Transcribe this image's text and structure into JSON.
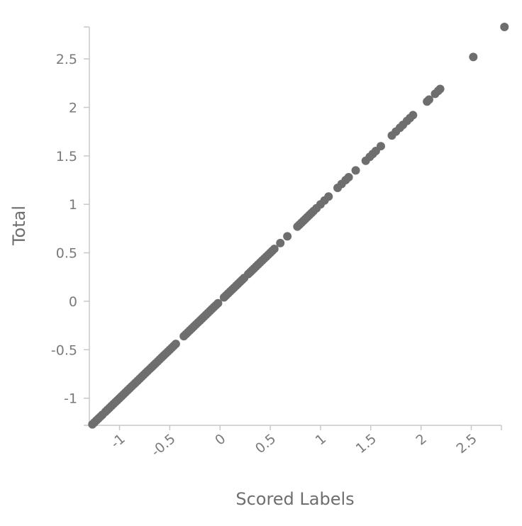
{
  "chart_data": {
    "type": "scatter",
    "title": "",
    "xlabel": "Scored Labels",
    "ylabel": "Total",
    "xlim": [
      -1.3,
      2.8
    ],
    "ylim": [
      -1.28,
      2.83
    ],
    "x_ticks": [
      -1,
      -0.5,
      0,
      0.5,
      1,
      1.5,
      2,
      2.5
    ],
    "x_tick_labels": [
      "-1",
      "-0.5",
      "0",
      "0.5",
      "1",
      "1.5",
      "2",
      "2.5"
    ],
    "y_ticks": [
      -1,
      -0.5,
      0,
      0.5,
      1,
      1.5,
      2,
      2.5
    ],
    "y_tick_labels": [
      "-1",
      "-0.5",
      "0",
      "0.5",
      "1",
      "1.5",
      "2",
      "2.5"
    ],
    "grid": false,
    "legend": "none",
    "colors": {
      "points": "#6e6e6e",
      "axis": "#c8c8c8"
    },
    "points": [
      [
        -1.27,
        -1.27
      ],
      [
        -1.25,
        -1.25
      ],
      [
        -1.23,
        -1.23
      ],
      [
        -1.21,
        -1.21
      ],
      [
        -1.19,
        -1.19
      ],
      [
        -1.17,
        -1.17
      ],
      [
        -1.14,
        -1.14
      ],
      [
        -1.12,
        -1.12
      ],
      [
        -1.1,
        -1.1
      ],
      [
        -1.08,
        -1.08
      ],
      [
        -1.06,
        -1.06
      ],
      [
        -1.04,
        -1.04
      ],
      [
        -1.02,
        -1.02
      ],
      [
        -1.0,
        -1.0
      ],
      [
        -0.98,
        -0.98
      ],
      [
        -0.96,
        -0.96
      ],
      [
        -0.94,
        -0.94
      ],
      [
        -0.92,
        -0.92
      ],
      [
        -0.9,
        -0.9
      ],
      [
        -0.88,
        -0.88
      ],
      [
        -0.86,
        -0.86
      ],
      [
        -0.84,
        -0.84
      ],
      [
        -0.82,
        -0.82
      ],
      [
        -0.8,
        -0.8
      ],
      [
        -0.78,
        -0.78
      ],
      [
        -0.76,
        -0.76
      ],
      [
        -0.74,
        -0.74
      ],
      [
        -0.72,
        -0.72
      ],
      [
        -0.7,
        -0.7
      ],
      [
        -0.68,
        -0.68
      ],
      [
        -0.66,
        -0.66
      ],
      [
        -0.64,
        -0.64
      ],
      [
        -0.62,
        -0.62
      ],
      [
        -0.6,
        -0.6
      ],
      [
        -0.58,
        -0.58
      ],
      [
        -0.56,
        -0.56
      ],
      [
        -0.54,
        -0.54
      ],
      [
        -0.52,
        -0.52
      ],
      [
        -0.5,
        -0.5
      ],
      [
        -0.48,
        -0.48
      ],
      [
        -0.46,
        -0.46
      ],
      [
        -0.44,
        -0.44
      ],
      [
        -0.36,
        -0.36
      ],
      [
        -0.34,
        -0.34
      ],
      [
        -0.32,
        -0.32
      ],
      [
        -0.3,
        -0.3
      ],
      [
        -0.28,
        -0.28
      ],
      [
        -0.26,
        -0.26
      ],
      [
        -0.24,
        -0.24
      ],
      [
        -0.22,
        -0.22
      ],
      [
        -0.2,
        -0.2
      ],
      [
        -0.18,
        -0.18
      ],
      [
        -0.16,
        -0.16
      ],
      [
        -0.14,
        -0.14
      ],
      [
        -0.12,
        -0.12
      ],
      [
        -0.1,
        -0.1
      ],
      [
        -0.08,
        -0.08
      ],
      [
        -0.06,
        -0.06
      ],
      [
        -0.04,
        -0.04
      ],
      [
        -0.02,
        -0.02
      ],
      [
        0.04,
        0.04
      ],
      [
        0.06,
        0.06
      ],
      [
        0.08,
        0.08
      ],
      [
        0.1,
        0.1
      ],
      [
        0.12,
        0.12
      ],
      [
        0.14,
        0.14
      ],
      [
        0.16,
        0.16
      ],
      [
        0.18,
        0.18
      ],
      [
        0.2,
        0.2
      ],
      [
        0.22,
        0.22
      ],
      [
        0.24,
        0.24
      ],
      [
        0.28,
        0.28
      ],
      [
        0.3,
        0.3
      ],
      [
        0.32,
        0.32
      ],
      [
        0.34,
        0.34
      ],
      [
        0.36,
        0.36
      ],
      [
        0.38,
        0.38
      ],
      [
        0.4,
        0.4
      ],
      [
        0.42,
        0.42
      ],
      [
        0.44,
        0.44
      ],
      [
        0.46,
        0.46
      ],
      [
        0.48,
        0.48
      ],
      [
        0.5,
        0.5
      ],
      [
        0.52,
        0.52
      ],
      [
        0.54,
        0.54
      ],
      [
        0.6,
        0.6
      ],
      [
        0.67,
        0.67
      ],
      [
        0.77,
        0.77
      ],
      [
        0.79,
        0.79
      ],
      [
        0.81,
        0.81
      ],
      [
        0.83,
        0.83
      ],
      [
        0.85,
        0.85
      ],
      [
        0.87,
        0.87
      ],
      [
        0.89,
        0.89
      ],
      [
        0.91,
        0.91
      ],
      [
        0.93,
        0.93
      ],
      [
        0.96,
        0.96
      ],
      [
        1.0,
        1.0
      ],
      [
        1.04,
        1.04
      ],
      [
        1.08,
        1.08
      ],
      [
        1.17,
        1.17
      ],
      [
        1.21,
        1.21
      ],
      [
        1.25,
        1.25
      ],
      [
        1.28,
        1.28
      ],
      [
        1.35,
        1.35
      ],
      [
        1.45,
        1.45
      ],
      [
        1.49,
        1.49
      ],
      [
        1.52,
        1.52
      ],
      [
        1.55,
        1.55
      ],
      [
        1.6,
        1.6
      ],
      [
        1.71,
        1.71
      ],
      [
        1.75,
        1.75
      ],
      [
        1.79,
        1.79
      ],
      [
        1.82,
        1.82
      ],
      [
        1.86,
        1.86
      ],
      [
        1.89,
        1.89
      ],
      [
        1.92,
        1.92
      ],
      [
        2.06,
        2.06
      ],
      [
        2.08,
        2.08
      ],
      [
        2.14,
        2.14
      ],
      [
        2.17,
        2.17
      ],
      [
        2.19,
        2.19
      ],
      [
        2.52,
        2.52
      ],
      [
        2.83,
        2.83
      ]
    ]
  }
}
